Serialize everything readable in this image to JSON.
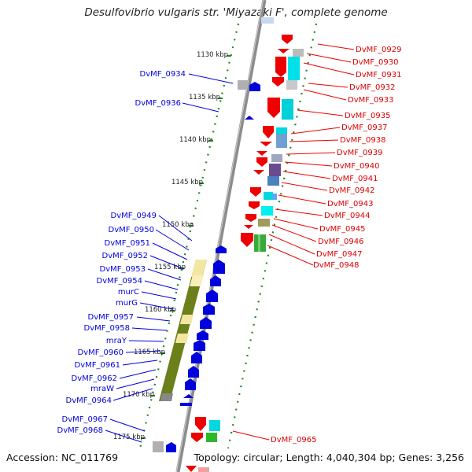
{
  "title": "Desulfovibrio vulgaris str. 'Miyazaki F', complete genome",
  "footer": {
    "accession": "Accession: NC_011769",
    "summary": "Topology: circular; Length: 4,040,304 bp; Genes: 3,256"
  },
  "colors": {
    "forward": "#ee0000",
    "reverse": "#0000dd",
    "backbone": "#888888",
    "ticks": "#228822",
    "operon": "#6b7f1a",
    "pale": "#f2e6a0"
  },
  "axis": {
    "unit": "kbp",
    "ticks": [
      {
        "label": "1130 kbp"
      },
      {
        "label": "1135 kbp"
      },
      {
        "label": "1140 kbp"
      },
      {
        "label": "1145 kbp"
      },
      {
        "label": "1150 kbp"
      },
      {
        "label": "1155 kbp"
      },
      {
        "label": "1160 kbp"
      },
      {
        "label": "1165 kbp"
      },
      {
        "label": "1170 kbp"
      },
      {
        "label": "1175 kbp"
      }
    ]
  },
  "genes_left": [
    {
      "label": "DvMF_0934"
    },
    {
      "label": "DvMF_0936"
    },
    {
      "label": "DvMF_0949"
    },
    {
      "label": "DvMF_0950"
    },
    {
      "label": "DvMF_0951"
    },
    {
      "label": "DvMF_0952"
    },
    {
      "label": "DvMF_0953"
    },
    {
      "label": "DvMF_0954"
    },
    {
      "label": "murC"
    },
    {
      "label": "murG"
    },
    {
      "label": "DvMF_0957"
    },
    {
      "label": "DvMF_0958"
    },
    {
      "label": "mraY"
    },
    {
      "label": "DvMF_0960"
    },
    {
      "label": "DvMF_0961"
    },
    {
      "label": "DvMF_0962"
    },
    {
      "label": "mraW"
    },
    {
      "label": "DvMF_0964"
    },
    {
      "label": "DvMF_0967"
    },
    {
      "label": "DvMF_0968"
    }
  ],
  "genes_right": [
    {
      "label": "DvMF_0929"
    },
    {
      "label": "DvMF_0930"
    },
    {
      "label": "DvMF_0931"
    },
    {
      "label": "DvMF_0932"
    },
    {
      "label": "DvMF_0933"
    },
    {
      "label": "DvMF_0935"
    },
    {
      "label": "DvMF_0937"
    },
    {
      "label": "DvMF_0938"
    },
    {
      "label": "DvMF_0939"
    },
    {
      "label": "DvMF_0940"
    },
    {
      "label": "DvMF_0941"
    },
    {
      "label": "DvMF_0942"
    },
    {
      "label": "DvMF_0943"
    },
    {
      "label": "DvMF_0944"
    },
    {
      "label": "DvMF_0945"
    },
    {
      "label": "DvMF_0946"
    },
    {
      "label": "DvMF_0947"
    },
    {
      "label": "DvMF_0948"
    },
    {
      "label": "DvMF_0965"
    }
  ]
}
